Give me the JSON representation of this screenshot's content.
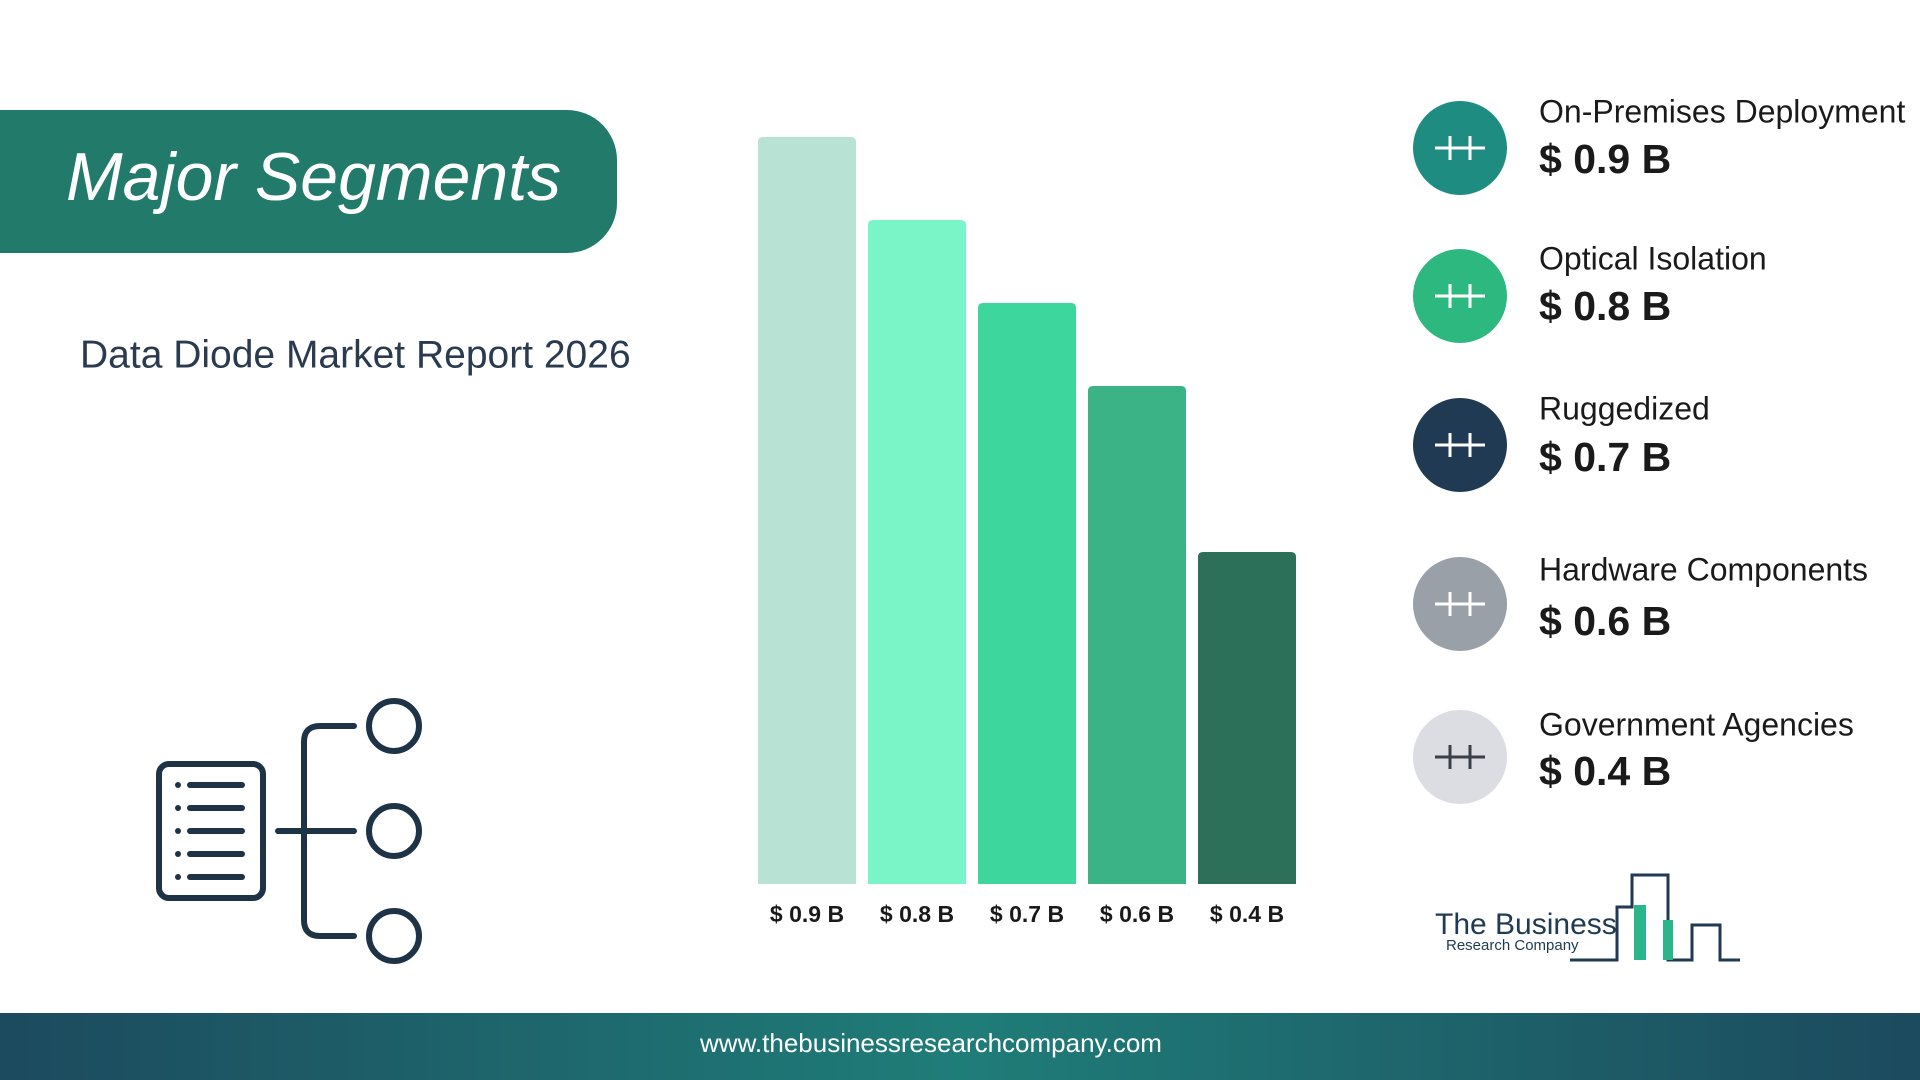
{
  "chart_data": {
    "type": "bar",
    "title": "Major Segments",
    "subtitle": "Data Diode Market Report 2026",
    "categories": [
      "On-Premises Deployment",
      "Optical Isolation",
      "Ruggedized",
      "Hardware Components",
      "Government Agencies"
    ],
    "values": [
      0.9,
      0.8,
      0.7,
      0.6,
      0.4
    ],
    "value_labels": [
      "$ 0.9 B",
      "$ 0.8 B",
      "$ 0.7 B",
      "$ 0.6 B",
      "$ 0.4 B"
    ],
    "colors": [
      "#b8e3d4",
      "#7af5c8",
      "#3dd69d",
      "#3bb386",
      "#2d7059"
    ]
  },
  "logo": {
    "line1": "The Business",
    "line2": "Research Company"
  },
  "footer": "www.thebusinessresearchcompany.com"
}
